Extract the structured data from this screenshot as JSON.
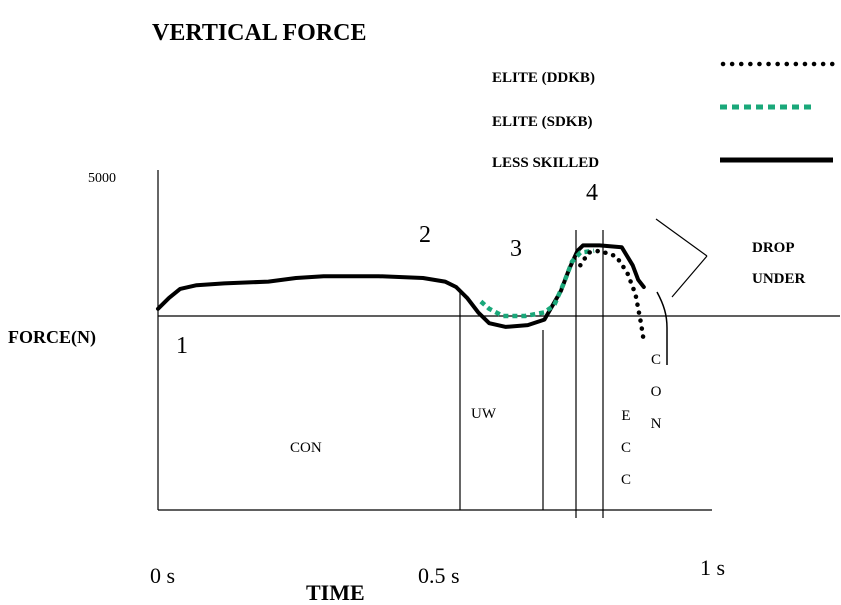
{
  "chart_data": {
    "type": "line",
    "title": "VERTICAL FORCE",
    "xlabel": "TIME",
    "ylabel": "FORCE(N)",
    "y_tick_label": "5000",
    "x_tick_labels": [
      "0 s",
      "0.5 s",
      "1 s"
    ],
    "xlim": [
      0,
      1
    ],
    "legend_placement": "top-right",
    "series": [
      {
        "name": "ELITE (DDKB)",
        "style": "dotted",
        "color": "#000000",
        "x": [
          0.765,
          0.78,
          0.8,
          0.83,
          0.85,
          0.865,
          0.875,
          0.88
        ],
        "y": [
          2400,
          2750,
          2800,
          2650,
          2200,
          1600,
          800,
          300
        ]
      },
      {
        "name": "ELITE (SDKB)",
        "style": "dotted",
        "color": "#1aa87a",
        "x": [
          0.585,
          0.6,
          0.625,
          0.665,
          0.7,
          0.718,
          0.735,
          0.75,
          0.765,
          0.79
        ],
        "y": [
          1400,
          1200,
          1000,
          1000,
          1100,
          1300,
          1900,
          2500,
          2750,
          2800
        ]
      },
      {
        "name": "LESS SKILLED",
        "style": "solid",
        "color": "#000000",
        "x": [
          0,
          0.02,
          0.04,
          0.07,
          0.12,
          0.2,
          0.25,
          0.3,
          0.4,
          0.48,
          0.52,
          0.54,
          0.56,
          0.58,
          0.6,
          0.63,
          0.67,
          0.7,
          0.73,
          0.745,
          0.76,
          0.77,
          0.8,
          0.84,
          0.86,
          0.87,
          0.88
        ],
        "y": [
          1200,
          1500,
          1750,
          1850,
          1900,
          1950,
          2050,
          2100,
          2100,
          2050,
          1950,
          1800,
          1500,
          1100,
          800,
          700,
          750,
          900,
          1700,
          2300,
          2800,
          2950,
          2950,
          2900,
          2400,
          2000,
          1800
        ]
      }
    ],
    "annotations": {
      "phase_numbers": [
        "1",
        "2",
        "3",
        "4"
      ],
      "phases": [
        "CON",
        "UW",
        "E C C",
        "C O N"
      ],
      "callout": "DROP UNDER"
    }
  },
  "colors": {
    "ink": "#000000",
    "elite_sdkb": "#1aa87a",
    "background": "#ffffff"
  }
}
